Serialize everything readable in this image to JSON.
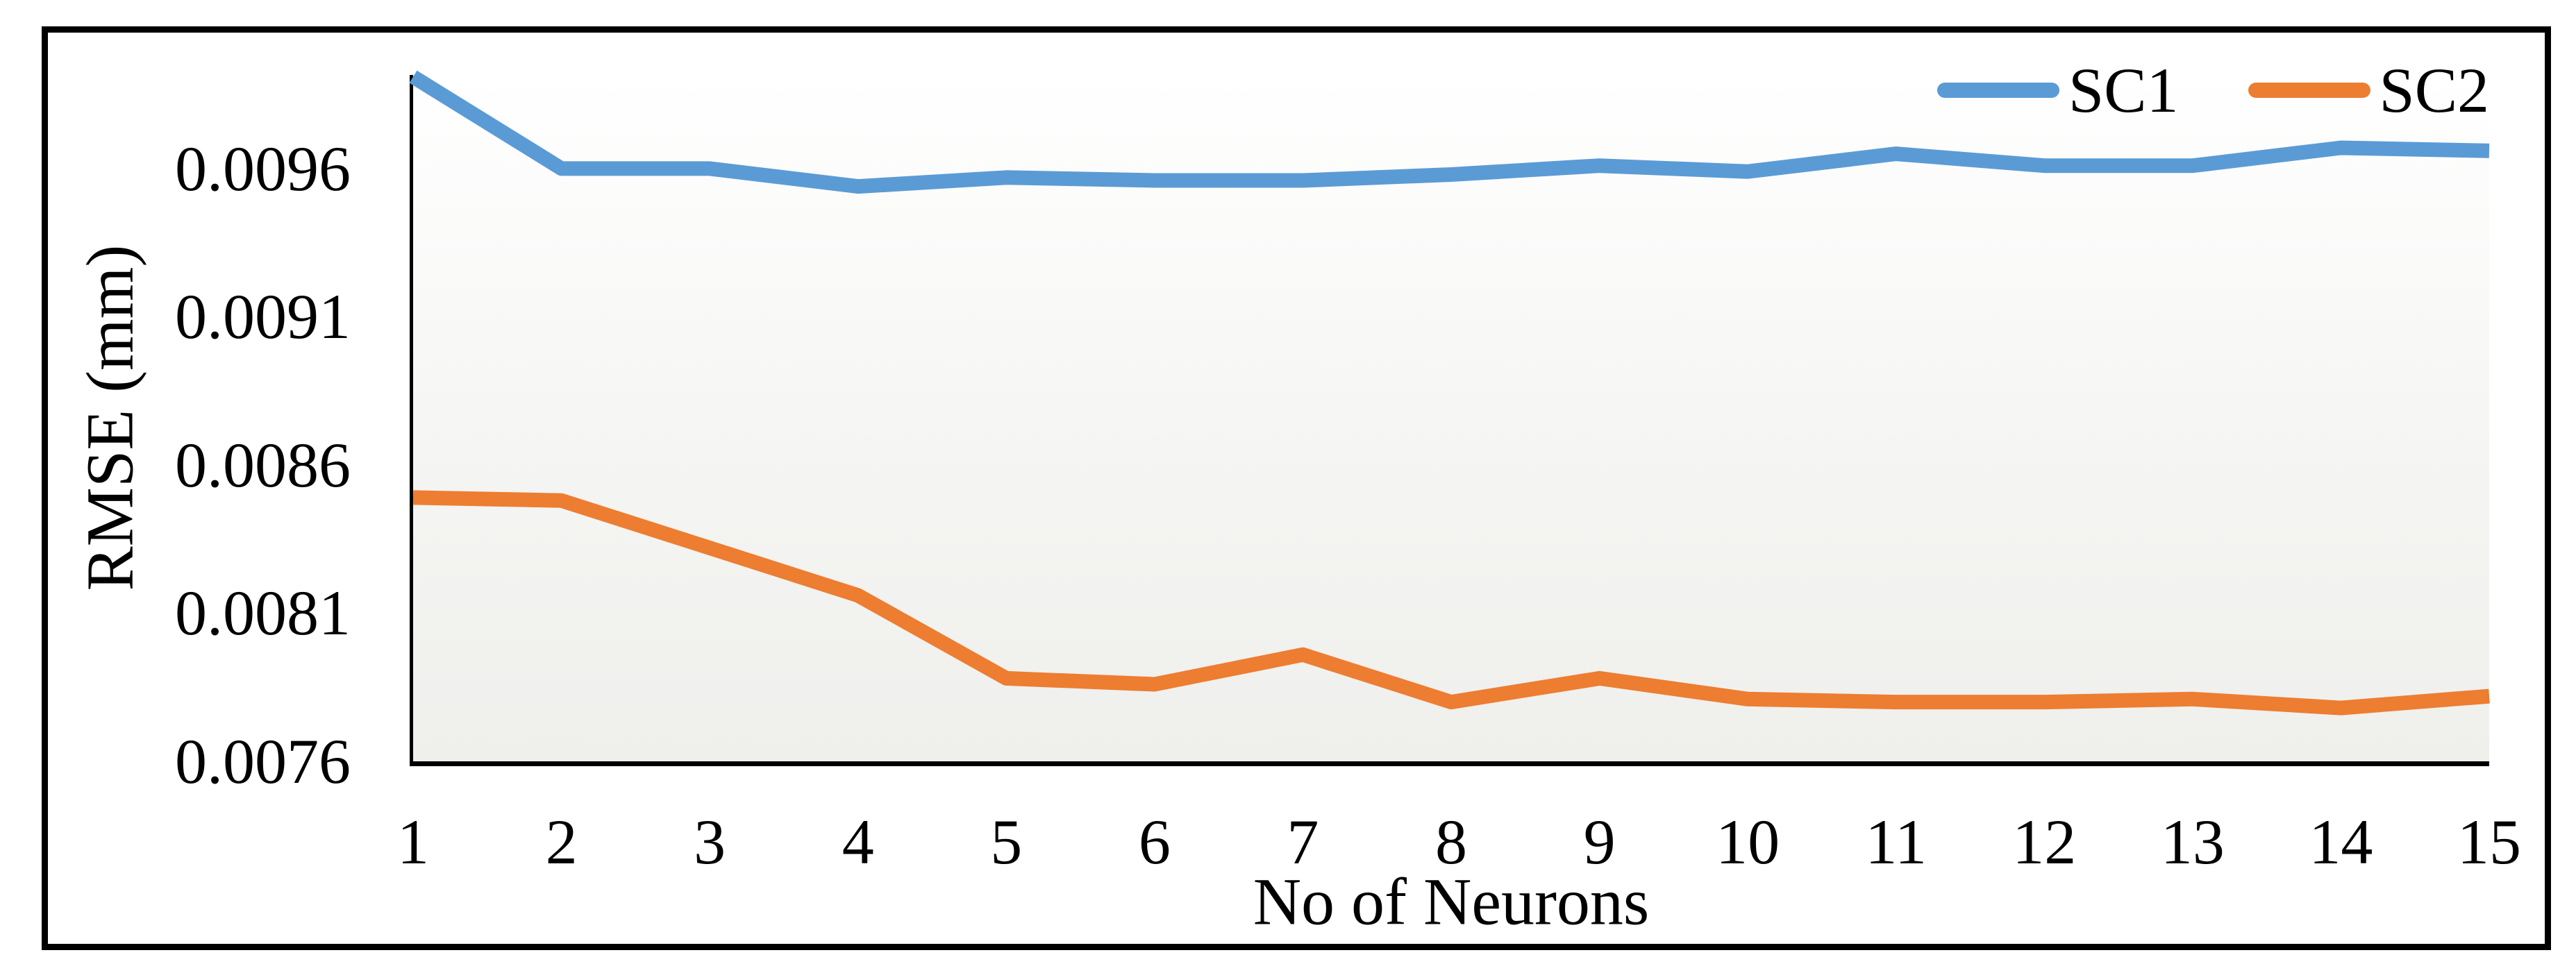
{
  "chart_data": {
    "type": "line",
    "title": "",
    "xlabel": "No of Neurons",
    "ylabel": "RMSE (mm)",
    "categories": [
      1,
      2,
      3,
      4,
      5,
      6,
      7,
      8,
      9,
      10,
      11,
      12,
      13,
      14,
      15
    ],
    "series": [
      {
        "name": "SC1",
        "color": "#5B9BD5",
        "values": [
          0.00991,
          0.0096,
          0.0096,
          0.00954,
          0.00957,
          0.00956,
          0.00956,
          0.00958,
          0.00961,
          0.00959,
          0.00965,
          0.00961,
          0.00961,
          0.00967,
          0.00966
        ]
      },
      {
        "name": "SC2",
        "color": "#ED7D31",
        "values": [
          0.00849,
          0.00848,
          0.00832,
          0.00816,
          0.00788,
          0.00786,
          0.00796,
          0.0078,
          0.00788,
          0.00781,
          0.0078,
          0.0078,
          0.00781,
          0.00778,
          0.00782
        ]
      }
    ],
    "y_ticks": [
      0.0096,
      0.0091,
      0.0086,
      0.0081,
      0.0076
    ],
    "y_tick_labels": [
      "0.0096",
      "0.0091",
      "0.0086",
      "0.0081",
      "0.0076"
    ],
    "x_tick_labels": [
      "1",
      "2",
      "3",
      "4",
      "5",
      "6",
      "7",
      "8",
      "9",
      "10",
      "11",
      "12",
      "13",
      "14",
      "15"
    ],
    "ylim": [
      0.0076,
      0.009916
    ],
    "xlim": [
      1,
      15
    ],
    "grid": false,
    "legend_position": "top-right",
    "axis_color": "#000000",
    "plot_bg_top": "#ffffff",
    "plot_bg_bottom": "#efefec"
  }
}
